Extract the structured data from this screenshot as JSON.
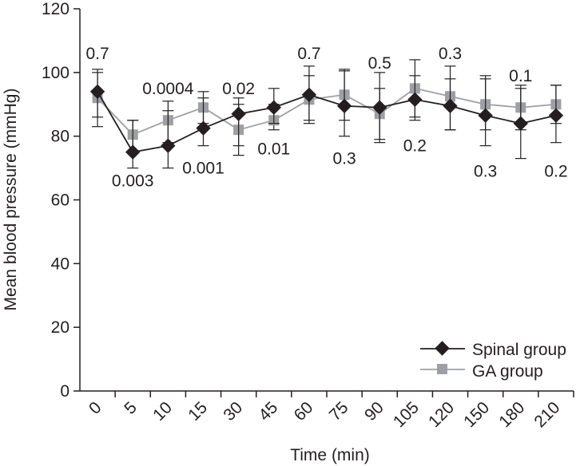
{
  "chart_data": {
    "type": "line",
    "title": "",
    "xlabel": "Time (min)",
    "ylabel": "Mean blood pressure (mmHg)",
    "ylim": [
      0,
      120
    ],
    "yticks": [
      "0",
      "20",
      "40",
      "60",
      "80",
      "100",
      "120"
    ],
    "grid": false,
    "legend_position": "bottom-right",
    "categories": [
      "0",
      "5",
      "10",
      "15",
      "30",
      "45",
      "60",
      "75",
      "90",
      "105",
      "120",
      "150",
      "180",
      "210"
    ],
    "series": [
      {
        "name": "Spinal group",
        "marker": "diamond",
        "color": "#231f20",
        "values": [
          94,
          75,
          77,
          82.5,
          87,
          89,
          93,
          89.5,
          89,
          91.5,
          89.5,
          86.5,
          84,
          86.5
        ],
        "error_low": [
          83,
          70,
          70,
          77,
          74,
          84,
          85,
          80,
          79,
          85,
          82,
          77,
          73,
          78
        ],
        "error_high": [
          101,
          85,
          91,
          94,
          92,
          95,
          102,
          100.5,
          100,
          104,
          102,
          98,
          96,
          96
        ]
      },
      {
        "name": "GA group",
        "marker": "square",
        "color": "#9d9fa2",
        "values": [
          92,
          80.5,
          85,
          89,
          82,
          85,
          91.5,
          93,
          87,
          95,
          92.5,
          90,
          89,
          90
        ],
        "error_low": [
          86,
          75,
          78,
          84,
          77,
          82,
          84,
          85,
          78,
          86,
          82,
          82,
          82,
          84
        ],
        "error_high": [
          100,
          85,
          88,
          92,
          90,
          90,
          99,
          101,
          95,
          99,
          98,
          99,
          95,
          96
        ]
      }
    ],
    "annotations": [
      {
        "text": "0.7",
        "index": 0,
        "y": 106,
        "placement": "above"
      },
      {
        "text": "0.003",
        "index": 1,
        "y": 66,
        "placement": "below"
      },
      {
        "text": "0.0004",
        "index": 2,
        "y": 95,
        "placement": "above"
      },
      {
        "text": "0.001",
        "index": 3,
        "y": 70,
        "placement": "below"
      },
      {
        "text": "0.02",
        "index": 4,
        "y": 95,
        "placement": "above"
      },
      {
        "text": "0.01",
        "index": 5,
        "y": 76,
        "placement": "below"
      },
      {
        "text": "0.7",
        "index": 6,
        "y": 106,
        "placement": "above"
      },
      {
        "text": "0.3",
        "index": 7,
        "y": 73,
        "placement": "below"
      },
      {
        "text": "0.5",
        "index": 8,
        "y": 103,
        "placement": "above"
      },
      {
        "text": "0.2",
        "index": 9,
        "y": 77,
        "placement": "below"
      },
      {
        "text": "0.3",
        "index": 10,
        "y": 106,
        "placement": "above"
      },
      {
        "text": "0.3",
        "index": 11,
        "y": 69,
        "placement": "below"
      },
      {
        "text": "0.1",
        "index": 12,
        "y": 99,
        "placement": "above"
      },
      {
        "text": "0.2",
        "index": 13,
        "y": 69,
        "placement": "below"
      }
    ]
  }
}
